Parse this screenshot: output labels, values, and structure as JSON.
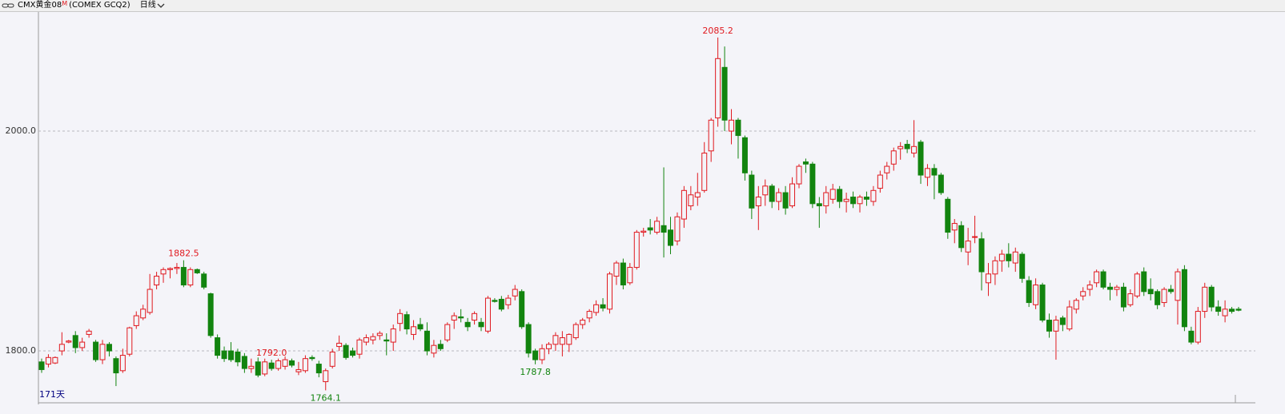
{
  "header": {
    "symbol": "CMX黄金08",
    "flag": "M",
    "exchange": "(COMEX GCQ2)",
    "period": "日线"
  },
  "chart_data": {
    "type": "candlestick",
    "up_color": "#e0191f",
    "down_color": "#12840f",
    "grid": true,
    "ylim": [
      1753.5,
      2108.4
    ],
    "yticks": [
      {
        "value": 2000,
        "label": "2000.0"
      },
      {
        "value": 1800,
        "label": "1800.0"
      }
    ],
    "range_label": "171天",
    "annotations": [
      {
        "value": 2085.2,
        "label": "2085.2"
      },
      {
        "value": 1882.5,
        "label": "1882.5"
      },
      {
        "value": 1764.1,
        "label": "1764.1"
      },
      {
        "value": 1787.8,
        "label": "1787.8"
      },
      {
        "value": 1792,
        "label": "1792.0"
      }
    ],
    "ohlc": [
      [
        1790,
        1793,
        1780,
        1783
      ],
      [
        1788,
        1797,
        1785,
        1794
      ],
      [
        1789,
        1795,
        1788,
        1794
      ],
      [
        1800,
        1817,
        1796,
        1806
      ],
      [
        1808,
        1810,
        1807,
        1809
      ],
      [
        1814,
        1818,
        1798,
        1803
      ],
      [
        1803,
        1812,
        1800,
        1808
      ],
      [
        1815,
        1820,
        1812,
        1818
      ],
      [
        1808,
        1810,
        1790,
        1792
      ],
      [
        1792,
        1810,
        1788,
        1806
      ],
      [
        1806,
        1808,
        1795,
        1800
      ],
      [
        1793,
        1795,
        1768,
        1780
      ],
      [
        1782,
        1802,
        1780,
        1796
      ],
      [
        1797,
        1822,
        1795,
        1821
      ],
      [
        1823,
        1836,
        1820,
        1832
      ],
      [
        1830,
        1842,
        1828,
        1838
      ],
      [
        1835,
        1870,
        1833,
        1856
      ],
      [
        1860,
        1872,
        1856,
        1868
      ],
      [
        1870,
        1876,
        1862,
        1874
      ],
      [
        1874,
        1876,
        1866,
        1875
      ],
      [
        1875,
        1880,
        1870,
        1876
      ],
      [
        1876,
        1882.5,
        1858,
        1860
      ],
      [
        1860,
        1876,
        1858,
        1874
      ],
      [
        1874,
        1875,
        1870,
        1871
      ],
      [
        1870,
        1872,
        1856,
        1858
      ],
      [
        1852,
        1853,
        1812,
        1814
      ],
      [
        1812,
        1815,
        1793,
        1796
      ],
      [
        1800,
        1804,
        1790,
        1793
      ],
      [
        1800,
        1808,
        1790,
        1792
      ],
      [
        1799,
        1802,
        1786,
        1790
      ],
      [
        1795,
        1798,
        1780,
        1784
      ],
      [
        1784,
        1793,
        1780,
        1786
      ],
      [
        1790,
        1794,
        1776,
        1778
      ],
      [
        1779,
        1793,
        1777,
        1790
      ],
      [
        1789,
        1792,
        1782,
        1784
      ],
      [
        1784,
        1793,
        1782,
        1791
      ],
      [
        1786,
        1795,
        1783,
        1792
      ],
      [
        1791,
        1793,
        1785,
        1787
      ],
      [
        1781,
        1790,
        1778,
        1783
      ],
      [
        1782,
        1796,
        1780,
        1793
      ],
      [
        1794,
        1796,
        1791,
        1793
      ],
      [
        1788,
        1791,
        1776,
        1780
      ],
      [
        1772,
        1784,
        1764.1,
        1782
      ],
      [
        1786,
        1802,
        1784,
        1799
      ],
      [
        1804,
        1814,
        1800,
        1807
      ],
      [
        1805,
        1807,
        1792,
        1794
      ],
      [
        1800,
        1803,
        1794,
        1796
      ],
      [
        1797,
        1812,
        1793,
        1810
      ],
      [
        1808,
        1815,
        1805,
        1812
      ],
      [
        1810,
        1816,
        1806,
        1813
      ],
      [
        1814,
        1818,
        1810,
        1816
      ],
      [
        1810,
        1816,
        1796,
        1809
      ],
      [
        1808,
        1824,
        1800,
        1820
      ],
      [
        1825,
        1838,
        1818,
        1834
      ],
      [
        1833,
        1836,
        1815,
        1820
      ],
      [
        1815,
        1828,
        1810,
        1822
      ],
      [
        1824,
        1830,
        1818,
        1820
      ],
      [
        1818,
        1826,
        1796,
        1800
      ],
      [
        1798,
        1810,
        1794,
        1805
      ],
      [
        1806,
        1810,
        1800,
        1802
      ],
      [
        1810,
        1826,
        1808,
        1824
      ],
      [
        1828,
        1835,
        1820,
        1832
      ],
      [
        1831,
        1838,
        1826,
        1830
      ],
      [
        1826,
        1830,
        1818,
        1822
      ],
      [
        1828,
        1836,
        1824,
        1834
      ],
      [
        1826,
        1830,
        1818,
        1822
      ],
      [
        1818,
        1850,
        1816,
        1848
      ],
      [
        1846,
        1848,
        1844,
        1845
      ],
      [
        1847,
        1850,
        1836,
        1838
      ],
      [
        1842,
        1851,
        1838,
        1848
      ],
      [
        1850,
        1860,
        1846,
        1856
      ],
      [
        1854,
        1856,
        1820,
        1822
      ],
      [
        1824,
        1826,
        1794,
        1798
      ],
      [
        1800,
        1802,
        1787.8,
        1792
      ],
      [
        1792,
        1806,
        1788,
        1802
      ],
      [
        1802,
        1808,
        1797,
        1806
      ],
      [
        1806,
        1817,
        1800,
        1814
      ],
      [
        1806,
        1818,
        1795,
        1812
      ],
      [
        1806,
        1816,
        1799,
        1815
      ],
      [
        1812,
        1826,
        1810,
        1824
      ],
      [
        1824,
        1830,
        1820,
        1828
      ],
      [
        1830,
        1838,
        1826,
        1836
      ],
      [
        1835,
        1846,
        1832,
        1842
      ],
      [
        1842,
        1848,
        1836,
        1839
      ],
      [
        1838,
        1872,
        1834,
        1870
      ],
      [
        1868,
        1882,
        1860,
        1880
      ],
      [
        1880,
        1884,
        1856,
        1860
      ],
      [
        1862,
        1880,
        1860,
        1876
      ],
      [
        1876,
        1910,
        1874,
        1908
      ],
      [
        1908,
        1912,
        1904,
        1909
      ],
      [
        1912,
        1920,
        1906,
        1910
      ],
      [
        1908,
        1922,
        1906,
        1918
      ],
      [
        1914,
        1967,
        1885,
        1908
      ],
      [
        1910,
        1922,
        1888,
        1896
      ],
      [
        1900,
        1926,
        1896,
        1922
      ],
      [
        1920,
        1950,
        1912,
        1946
      ],
      [
        1932,
        1950,
        1928,
        1942
      ],
      [
        1940,
        1962,
        1932,
        1944
      ],
      [
        1946,
        1990,
        1944,
        1980
      ],
      [
        1982,
        2012,
        1972,
        2010
      ],
      [
        2012,
        2085.2,
        2004,
        2066
      ],
      [
        2058,
        2077,
        2000,
        2010
      ],
      [
        2000,
        2020,
        1988,
        2010
      ],
      [
        2010,
        2012,
        1975,
        1996
      ],
      [
        1994,
        1996,
        1955,
        1962
      ],
      [
        1960,
        1964,
        1920,
        1930
      ],
      [
        1932,
        1950,
        1910,
        1940
      ],
      [
        1942,
        1956,
        1932,
        1950
      ],
      [
        1950,
        1952,
        1930,
        1936
      ],
      [
        1936,
        1948,
        1928,
        1944
      ],
      [
        1944,
        1950,
        1924,
        1930
      ],
      [
        1932,
        1958,
        1930,
        1952
      ],
      [
        1952,
        1970,
        1948,
        1968
      ],
      [
        1972,
        1975,
        1962,
        1970
      ],
      [
        1970,
        1972,
        1930,
        1934
      ],
      [
        1934,
        1940,
        1912,
        1932
      ],
      [
        1932,
        1950,
        1925,
        1944
      ],
      [
        1938,
        1952,
        1934,
        1947
      ],
      [
        1947,
        1950,
        1930,
        1936
      ],
      [
        1936,
        1944,
        1926,
        1938
      ],
      [
        1940,
        1945,
        1930,
        1934
      ],
      [
        1934,
        1942,
        1926,
        1940
      ],
      [
        1940,
        1945,
        1932,
        1938
      ],
      [
        1936,
        1950,
        1932,
        1946
      ],
      [
        1948,
        1964,
        1944,
        1960
      ],
      [
        1962,
        1972,
        1956,
        1968
      ],
      [
        1970,
        1985,
        1964,
        1982
      ],
      [
        1984,
        1990,
        1974,
        1986
      ],
      [
        1988,
        1992,
        1980,
        1984
      ],
      [
        1980,
        2010,
        1976,
        1986
      ],
      [
        1990,
        1992,
        1952,
        1960
      ],
      [
        1958,
        1970,
        1950,
        1966
      ],
      [
        1966,
        1970,
        1938,
        1960
      ],
      [
        1960,
        1962,
        1942,
        1944
      ],
      [
        1938,
        1940,
        1902,
        1908
      ],
      [
        1910,
        1920,
        1898,
        1916
      ],
      [
        1914,
        1918,
        1890,
        1894
      ],
      [
        1890,
        1912,
        1878,
        1900
      ],
      [
        1904,
        1923,
        1898,
        1904
      ],
      [
        1902,
        1908,
        1855,
        1872
      ],
      [
        1862,
        1880,
        1850,
        1870
      ],
      [
        1870,
        1886,
        1860,
        1882
      ],
      [
        1882,
        1892,
        1872,
        1888
      ],
      [
        1888,
        1898,
        1876,
        1882
      ],
      [
        1880,
        1894,
        1872,
        1890
      ],
      [
        1888,
        1890,
        1862,
        1866
      ],
      [
        1864,
        1868,
        1840,
        1844
      ],
      [
        1842,
        1866,
        1838,
        1860
      ],
      [
        1860,
        1862,
        1826,
        1828
      ],
      [
        1828,
        1834,
        1812,
        1818
      ],
      [
        1818,
        1832,
        1792,
        1828
      ],
      [
        1830,
        1832,
        1818,
        1824
      ],
      [
        1820,
        1846,
        1818,
        1840
      ],
      [
        1838,
        1848,
        1834,
        1846
      ],
      [
        1850,
        1858,
        1846,
        1854
      ],
      [
        1856,
        1864,
        1850,
        1860
      ],
      [
        1862,
        1874,
        1858,
        1872
      ],
      [
        1872,
        1874,
        1856,
        1858
      ],
      [
        1858,
        1862,
        1846,
        1856
      ],
      [
        1856,
        1860,
        1850,
        1858
      ],
      [
        1858,
        1862,
        1836,
        1840
      ],
      [
        1842,
        1856,
        1840,
        1852
      ],
      [
        1850,
        1872,
        1848,
        1870
      ],
      [
        1872,
        1876,
        1850,
        1854
      ],
      [
        1856,
        1866,
        1846,
        1852
      ],
      [
        1854,
        1856,
        1838,
        1842
      ],
      [
        1844,
        1858,
        1840,
        1856
      ],
      [
        1856,
        1860,
        1852,
        1854
      ],
      [
        1846,
        1875,
        1824,
        1872
      ],
      [
        1874,
        1878,
        1818,
        1822
      ],
      [
        1818,
        1822,
        1806,
        1808
      ],
      [
        1808,
        1840,
        1806,
        1836
      ],
      [
        1836,
        1862,
        1830,
        1858
      ],
      [
        1858,
        1860,
        1836,
        1840
      ],
      [
        1840,
        1846,
        1832,
        1836
      ],
      [
        1832,
        1846,
        1826,
        1838
      ],
      [
        1838,
        1840,
        1834,
        1836
      ],
      [
        1838,
        1840,
        1836,
        1837
      ]
    ]
  }
}
